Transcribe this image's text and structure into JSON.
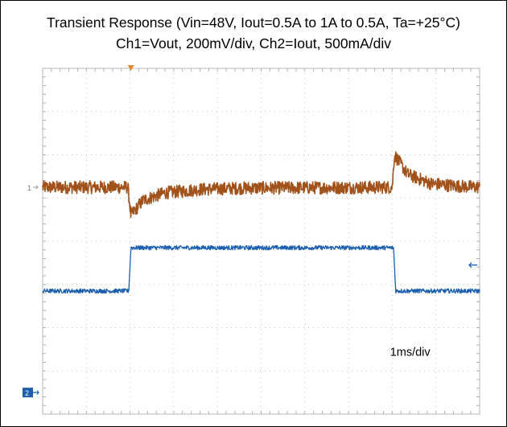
{
  "title": "Transient Response (Vin=48V, Iout=0.5A to 1A to 0.5A, Ta=+25°C)",
  "subtitle": "Ch1=Vout, 200mV/div, Ch2=Iout, 500mA/div",
  "chart_data": {
    "type": "line",
    "timebase_label": "1ms/div",
    "divisions": {
      "x": 10,
      "y": 8
    },
    "x_range_div": [
      0,
      10
    ],
    "y_range_div": [
      0,
      8
    ],
    "grid": true,
    "series": [
      {
        "marker": "1",
        "color": "#a0521a",
        "noise_div": 0.15,
        "points_div": [
          [
            0,
            5.25
          ],
          [
            1.95,
            5.25
          ],
          [
            2.02,
            4.6
          ],
          [
            2.3,
            4.95
          ],
          [
            2.8,
            5.12
          ],
          [
            3.6,
            5.2
          ],
          [
            4.5,
            5.23
          ],
          [
            8.0,
            5.25
          ],
          [
            8.05,
            6.0
          ],
          [
            8.35,
            5.55
          ],
          [
            8.9,
            5.33
          ],
          [
            9.6,
            5.27
          ],
          [
            10,
            5.25
          ]
        ]
      },
      {
        "marker": "2",
        "color": "#1b5fae",
        "noise_div": 0.05,
        "points_div": [
          [
            0,
            2.85
          ],
          [
            1.97,
            2.85
          ],
          [
            2.02,
            3.85
          ],
          [
            8.03,
            3.85
          ],
          [
            8.08,
            2.85
          ],
          [
            10,
            2.85
          ]
        ]
      }
    ]
  }
}
